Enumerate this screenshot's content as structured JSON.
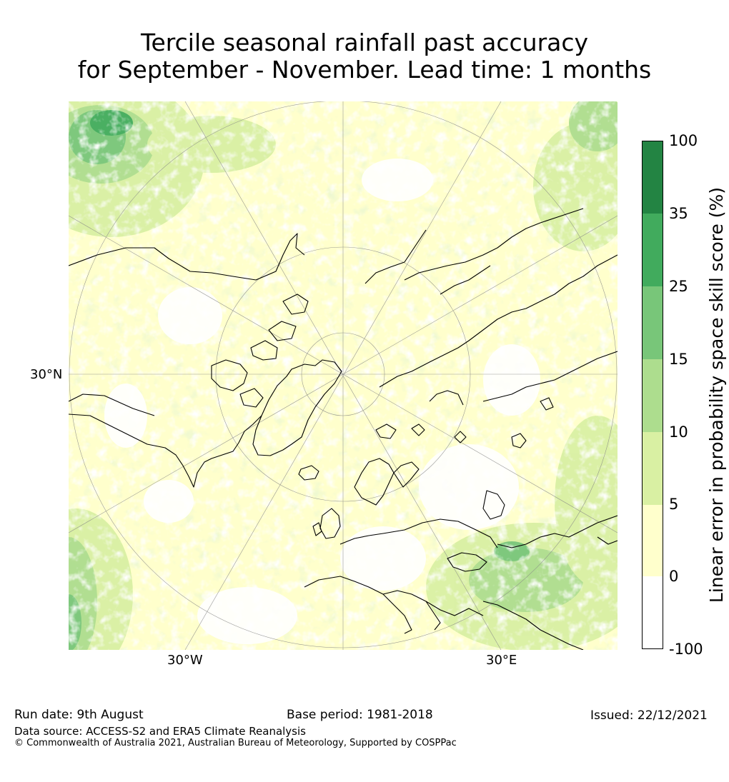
{
  "title": {
    "line1": "Tercile seasonal rainfall past accuracy",
    "line2": "for September - November. Lead time: 1 months"
  },
  "map": {
    "projection": "north-polar-stereographic",
    "labels": {
      "lat": "30°N",
      "lon_west": "30°W",
      "lon_east": "30°E"
    }
  },
  "colorbar": {
    "label": "Linear error in probability space skill score (%)",
    "ticks": [
      "100",
      "35",
      "25",
      "15",
      "10",
      "5",
      "0",
      "-100"
    ],
    "bins": [
      {
        "range": "-100 to 0",
        "color": "#ffffff"
      },
      {
        "range": "0 to 5",
        "color": "#ffffcc"
      },
      {
        "range": "5 to 10",
        "color": "#d9f0a3"
      },
      {
        "range": "10 to 15",
        "color": "#addd8e"
      },
      {
        "range": "15 to 25",
        "color": "#78c679"
      },
      {
        "range": "25 to 35",
        "color": "#41ab5d"
      },
      {
        "range": "35 to 100",
        "color": "#238443"
      }
    ]
  },
  "footer": {
    "run_date": "Run date: 9th August",
    "base_period": "Base period: 1981-2018",
    "issued": "Issued: 22/12/2021",
    "data_source": "Data source: ACCESS-S2 and ERA5 Climate Reanalysis",
    "copyright": "© Commonwealth of Australia 2021, Australian Bureau of Meteorology, Supported by COSPPac"
  }
}
